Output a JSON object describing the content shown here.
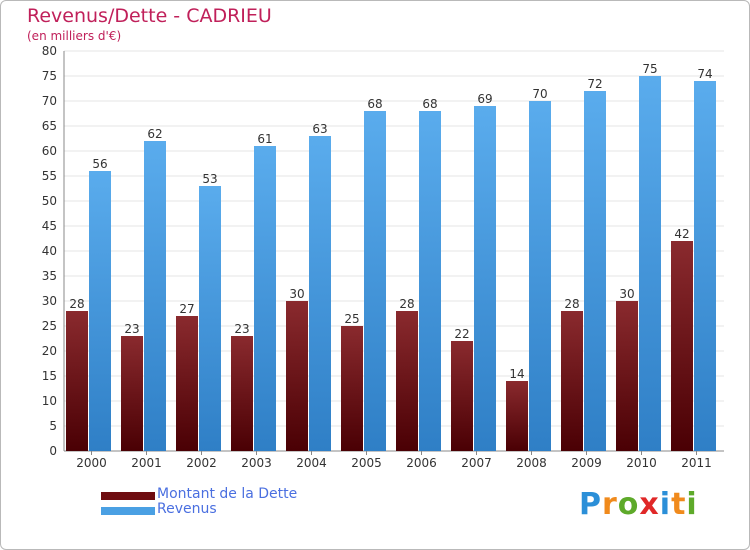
{
  "title": "Revenus/Dette - CADRIEU",
  "subtitle": "(en milliers d'€)",
  "legend": [
    {
      "label": "Montant de la Dette",
      "color": "#6e0c10"
    },
    {
      "label": "Revenus",
      "color": "#4aa0e3"
    }
  ],
  "logo": {
    "letters": [
      "P",
      "r",
      "o",
      "x",
      "i",
      "t",
      "i"
    ],
    "colors": [
      "#2b8fd8",
      "#f08a1c",
      "#5eaa2a",
      "#e02828",
      "#2b8fd8",
      "#f08a1c",
      "#5eaa2a"
    ]
  },
  "chart_data": {
    "type": "bar",
    "title": "Revenus/Dette - CADRIEU",
    "ylabel": "(en milliers d'€)",
    "xlabel": "",
    "categories": [
      "2000",
      "2001",
      "2002",
      "2003",
      "2004",
      "2005",
      "2006",
      "2007",
      "2008",
      "2009",
      "2010",
      "2011"
    ],
    "series": [
      {
        "name": "Montant de la Dette",
        "color": "#6e0c10",
        "values": [
          28,
          23,
          27,
          23,
          30,
          25,
          28,
          22,
          14,
          28,
          30,
          42
        ]
      },
      {
        "name": "Revenus",
        "color": "#4aa0e3",
        "values": [
          56,
          62,
          53,
          61,
          63,
          68,
          68,
          69,
          70,
          72,
          75,
          74
        ]
      }
    ],
    "ylim": [
      0,
      80
    ],
    "yticks": [
      0,
      5,
      10,
      15,
      20,
      25,
      30,
      35,
      40,
      45,
      50,
      55,
      60,
      65,
      70,
      75,
      80
    ],
    "grid": true,
    "legend_position": "bottom-left"
  }
}
